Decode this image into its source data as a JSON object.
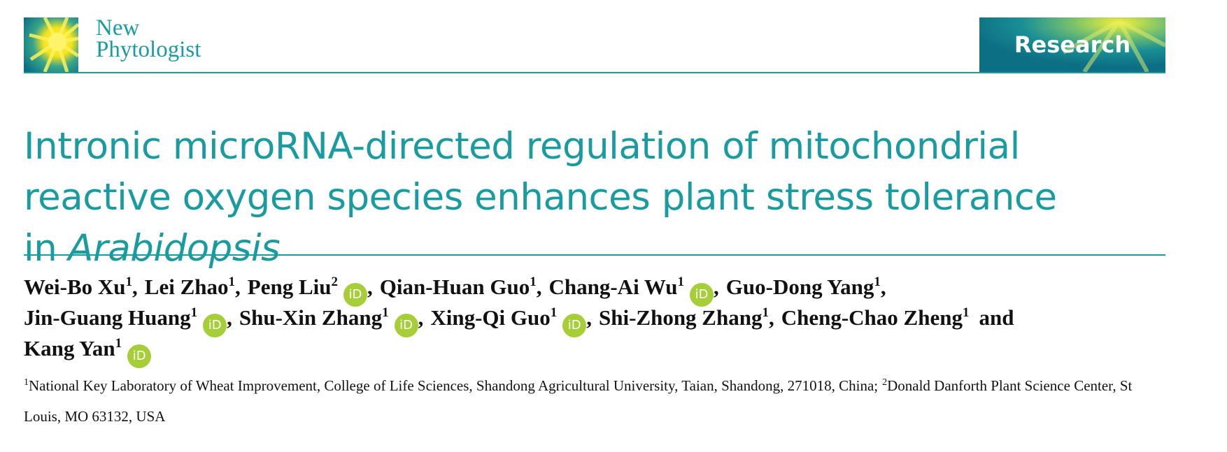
{
  "header": {
    "journal": [
      "New",
      "Phytologist"
    ],
    "section": "Research"
  },
  "title": {
    "text": "Intronic microRNA-directed regulation of mitochondrial reactive oxygen species enhances plant stress tolerance in",
    "italic_text": "Arabidopsis"
  },
  "orcid_label": "iD",
  "author_lines": [
    [
      {
        "name": "Wei-Bo Xu",
        "aff": "1",
        "orcid": false,
        "sep": ","
      },
      {
        "name": "Lei Zhao",
        "aff": "1",
        "orcid": false,
        "sep": ","
      },
      {
        "name": "Peng Liu",
        "aff": "2",
        "orcid": true,
        "sep": ","
      },
      {
        "name": "Qian-Huan Guo",
        "aff": "1",
        "orcid": false,
        "sep": ","
      },
      {
        "name": "Chang-Ai Wu",
        "aff": "1",
        "orcid": true,
        "sep": ","
      },
      {
        "name": "Guo-Dong Yang",
        "aff": "1",
        "orcid": false,
        "sep": ","
      }
    ],
    [
      {
        "name": "Jin-Guang Huang",
        "aff": "1",
        "orcid": true,
        "sep": ","
      },
      {
        "name": "Shu-Xin Zhang",
        "aff": "1",
        "orcid": true,
        "sep": ","
      },
      {
        "name": "Xing-Qi Guo",
        "aff": "1",
        "orcid": true,
        "sep": ","
      },
      {
        "name": "Shi-Zhong Zhang",
        "aff": "1",
        "orcid": false,
        "sep": ","
      },
      {
        "name": "Cheng-Chao Zheng",
        "aff": "1",
        "orcid": false,
        "sep": "and"
      }
    ],
    [
      {
        "name": "Kang Yan",
        "aff": "1",
        "orcid": true
      }
    ]
  ],
  "affiliations": [
    {
      "mark": "1",
      "text": "National Key Laboratory of Wheat Improvement, College of Life Sciences, Shandong Agricultural University, Taian, Shandong, 271018, China;"
    },
    {
      "mark": "2",
      "text": "Donald Danforth Plant Science Center, St Louis, MO 63132, USA"
    }
  ]
}
